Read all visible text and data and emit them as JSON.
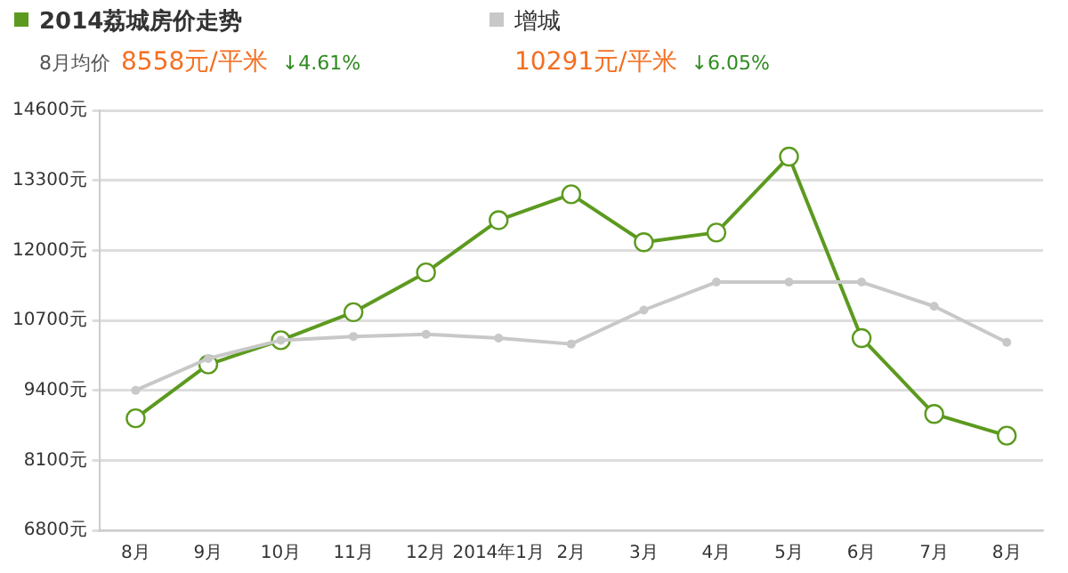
{
  "chart_data": {
    "type": "line",
    "categories": [
      "8月",
      "9月",
      "10月",
      "11月",
      "12月",
      "2014年1月",
      "2月",
      "3月",
      "4月",
      "5月",
      "6月",
      "7月",
      "8月"
    ],
    "series": [
      {
        "name": "2014荔城房价走势",
        "color": "#5c9a1f",
        "values": [
          8880,
          9880,
          10330,
          10850,
          11590,
          12560,
          13040,
          12150,
          12330,
          13740,
          10370,
          8960,
          8558
        ]
      },
      {
        "name": "增城",
        "color": "#c8c8c8",
        "values": [
          9400,
          9990,
          10330,
          10400,
          10440,
          10370,
          10260,
          10890,
          11410,
          11410,
          11410,
          10960,
          10291
        ]
      }
    ],
    "ylim": [
      6800,
      14600
    ],
    "yticks": [
      {
        "value": 6800,
        "label": "6800元"
      },
      {
        "value": 8100,
        "label": "8100元"
      },
      {
        "value": 9400,
        "label": "9400元"
      },
      {
        "value": 10700,
        "label": "10700元"
      },
      {
        "value": 12000,
        "label": "12000元"
      },
      {
        "value": 13300,
        "label": "13300元"
      },
      {
        "value": 14600,
        "label": "14600元"
      }
    ],
    "annotations": [
      "8月均价",
      "8558元/平米",
      "↓4.61%",
      "10291元/平米",
      "↓6.05%"
    ],
    "grid": "y",
    "legend": "top left",
    "marker": "circle",
    "line_style": "solid"
  }
}
